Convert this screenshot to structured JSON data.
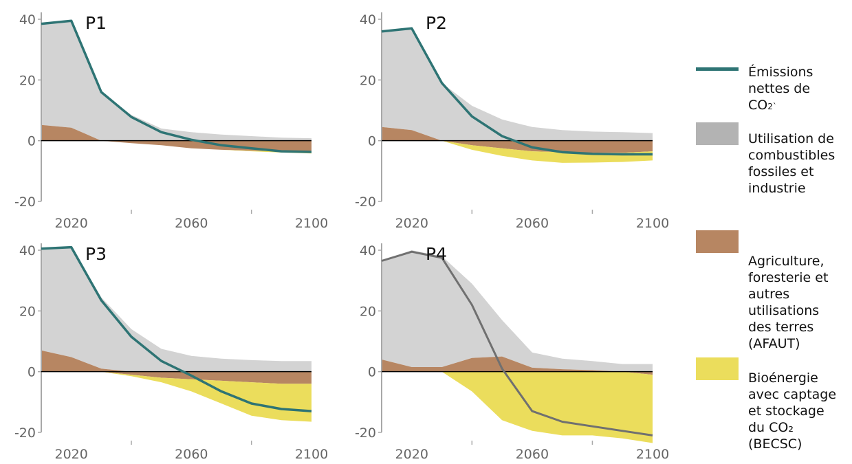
{
  "colors": {
    "net": "#2e7474",
    "p4_net": "#707070",
    "fossil": "#d3d3d3",
    "afolu": "#b78662",
    "beccs": "#ebdd5c",
    "axis": "#a8a8a8",
    "zero": "#000000",
    "tick_text": "#666666"
  },
  "legend": {
    "net": {
      "line1": "Émissions",
      "line2": "nettes de",
      "line3": "CO",
      "sub": "2`"
    },
    "fossil": {
      "label": "Utilisation de\ncombustibles\nfossiles et\nindustrie"
    },
    "afolu": {
      "label": "Agriculture,\nforesterie et\nautres\nutilisations\ndes terres\n(AFAUT)"
    },
    "beccs": {
      "label": "Bioénergie\navec captage\net stockage\ndu CO₂\n(BECSC)"
    }
  },
  "chart_data": [
    {
      "type": "area",
      "title": "P1",
      "x": [
        2010,
        2020,
        2030,
        2040,
        2050,
        2060,
        2070,
        2080,
        2090,
        2100
      ],
      "ylim": [
        -20,
        40
      ],
      "yticks": [
        -20,
        0,
        20,
        40
      ],
      "xticks": [
        2020,
        2060,
        2100
      ],
      "series": [
        {
          "key": "fossil",
          "values": [
            33,
            35,
            16,
            8.5,
            4,
            2.8,
            2,
            1.5,
            1,
            0.8
          ]
        },
        {
          "key": "afolu",
          "values": [
            5.2,
            4.3,
            0,
            -0.8,
            -1.5,
            -2.5,
            -3,
            -3.3,
            -3.5,
            -3.6
          ]
        },
        {
          "key": "beccs",
          "values": [
            0,
            0,
            0,
            0,
            0,
            0,
            0,
            -0.2,
            -0.4,
            -0.6
          ]
        },
        {
          "key": "net",
          "values": [
            38.5,
            39.5,
            16,
            7.8,
            2.8,
            0.3,
            -1.5,
            -2.5,
            -3.5,
            -3.7
          ]
        }
      ]
    },
    {
      "type": "area",
      "title": "P2",
      "x": [
        2010,
        2020,
        2030,
        2040,
        2050,
        2060,
        2070,
        2080,
        2090,
        2100
      ],
      "ylim": [
        -20,
        40
      ],
      "yticks": [
        -20,
        0,
        20,
        40
      ],
      "xticks": [
        2020,
        2060,
        2100
      ],
      "series": [
        {
          "key": "fossil",
          "values": [
            31.5,
            33.5,
            19,
            11.5,
            7,
            4.5,
            3.5,
            3,
            2.8,
            2.5
          ]
        },
        {
          "key": "afolu",
          "values": [
            4.5,
            3.5,
            0,
            -1.5,
            -2.5,
            -3.5,
            -3.8,
            -4,
            -4,
            -3.5
          ]
        },
        {
          "key": "beccs",
          "values": [
            0,
            0,
            0,
            -1.5,
            -2.5,
            -3,
            -3.5,
            -3.2,
            -3,
            -3
          ]
        },
        {
          "key": "net",
          "values": [
            36,
            37,
            19,
            8,
            1.5,
            -2.2,
            -3.8,
            -4.3,
            -4.5,
            -4.5
          ]
        }
      ]
    },
    {
      "type": "area",
      "title": "P3",
      "x": [
        2010,
        2020,
        2030,
        2040,
        2050,
        2060,
        2070,
        2080,
        2090,
        2100
      ],
      "ylim": [
        -20,
        40
      ],
      "yticks": [
        -20,
        0,
        20,
        40
      ],
      "xticks": [
        2020,
        2060,
        2100
      ],
      "series": [
        {
          "key": "fossil",
          "values": [
            33.5,
            36.5,
            23.5,
            14,
            7.5,
            5.2,
            4.3,
            3.8,
            3.5,
            3.5
          ]
        },
        {
          "key": "afolu",
          "values": [
            7,
            4.8,
            1,
            -1,
            -2,
            -2.5,
            -3,
            -3.5,
            -4,
            -4
          ]
        },
        {
          "key": "beccs",
          "values": [
            0,
            0,
            0,
            -0.5,
            -1.5,
            -4,
            -7.5,
            -11,
            -12,
            -12.5
          ]
        },
        {
          "key": "net",
          "values": [
            40.5,
            41,
            23.5,
            11.5,
            3.5,
            -1.3,
            -6.5,
            -10.5,
            -12.3,
            -13
          ]
        }
      ]
    },
    {
      "type": "area",
      "title": "P4",
      "x": [
        2010,
        2020,
        2030,
        2040,
        2050,
        2060,
        2070,
        2080,
        2090,
        2100
      ],
      "ylim": [
        -20,
        40
      ],
      "yticks": [
        -20,
        0,
        20,
        40
      ],
      "xticks": [
        2020,
        2060,
        2100
      ],
      "series": [
        {
          "key": "fossil",
          "values": [
            32.5,
            38.5,
            36.5,
            24.5,
            12,
            5,
            3.5,
            3,
            2.5,
            2.5
          ]
        },
        {
          "key": "afolu",
          "values": [
            4,
            1.5,
            1.5,
            4.5,
            5,
            1.3,
            0.8,
            0.5,
            0,
            -1
          ]
        },
        {
          "key": "beccs",
          "values": [
            0,
            0,
            0,
            -6.5,
            -16,
            -19.5,
            -21,
            -21,
            -22,
            -22.5
          ]
        },
        {
          "key": "net",
          "values": [
            36.5,
            39.5,
            37.5,
            22,
            1,
            -13,
            -16.5,
            -18,
            -19.5,
            -21
          ]
        }
      ]
    }
  ]
}
